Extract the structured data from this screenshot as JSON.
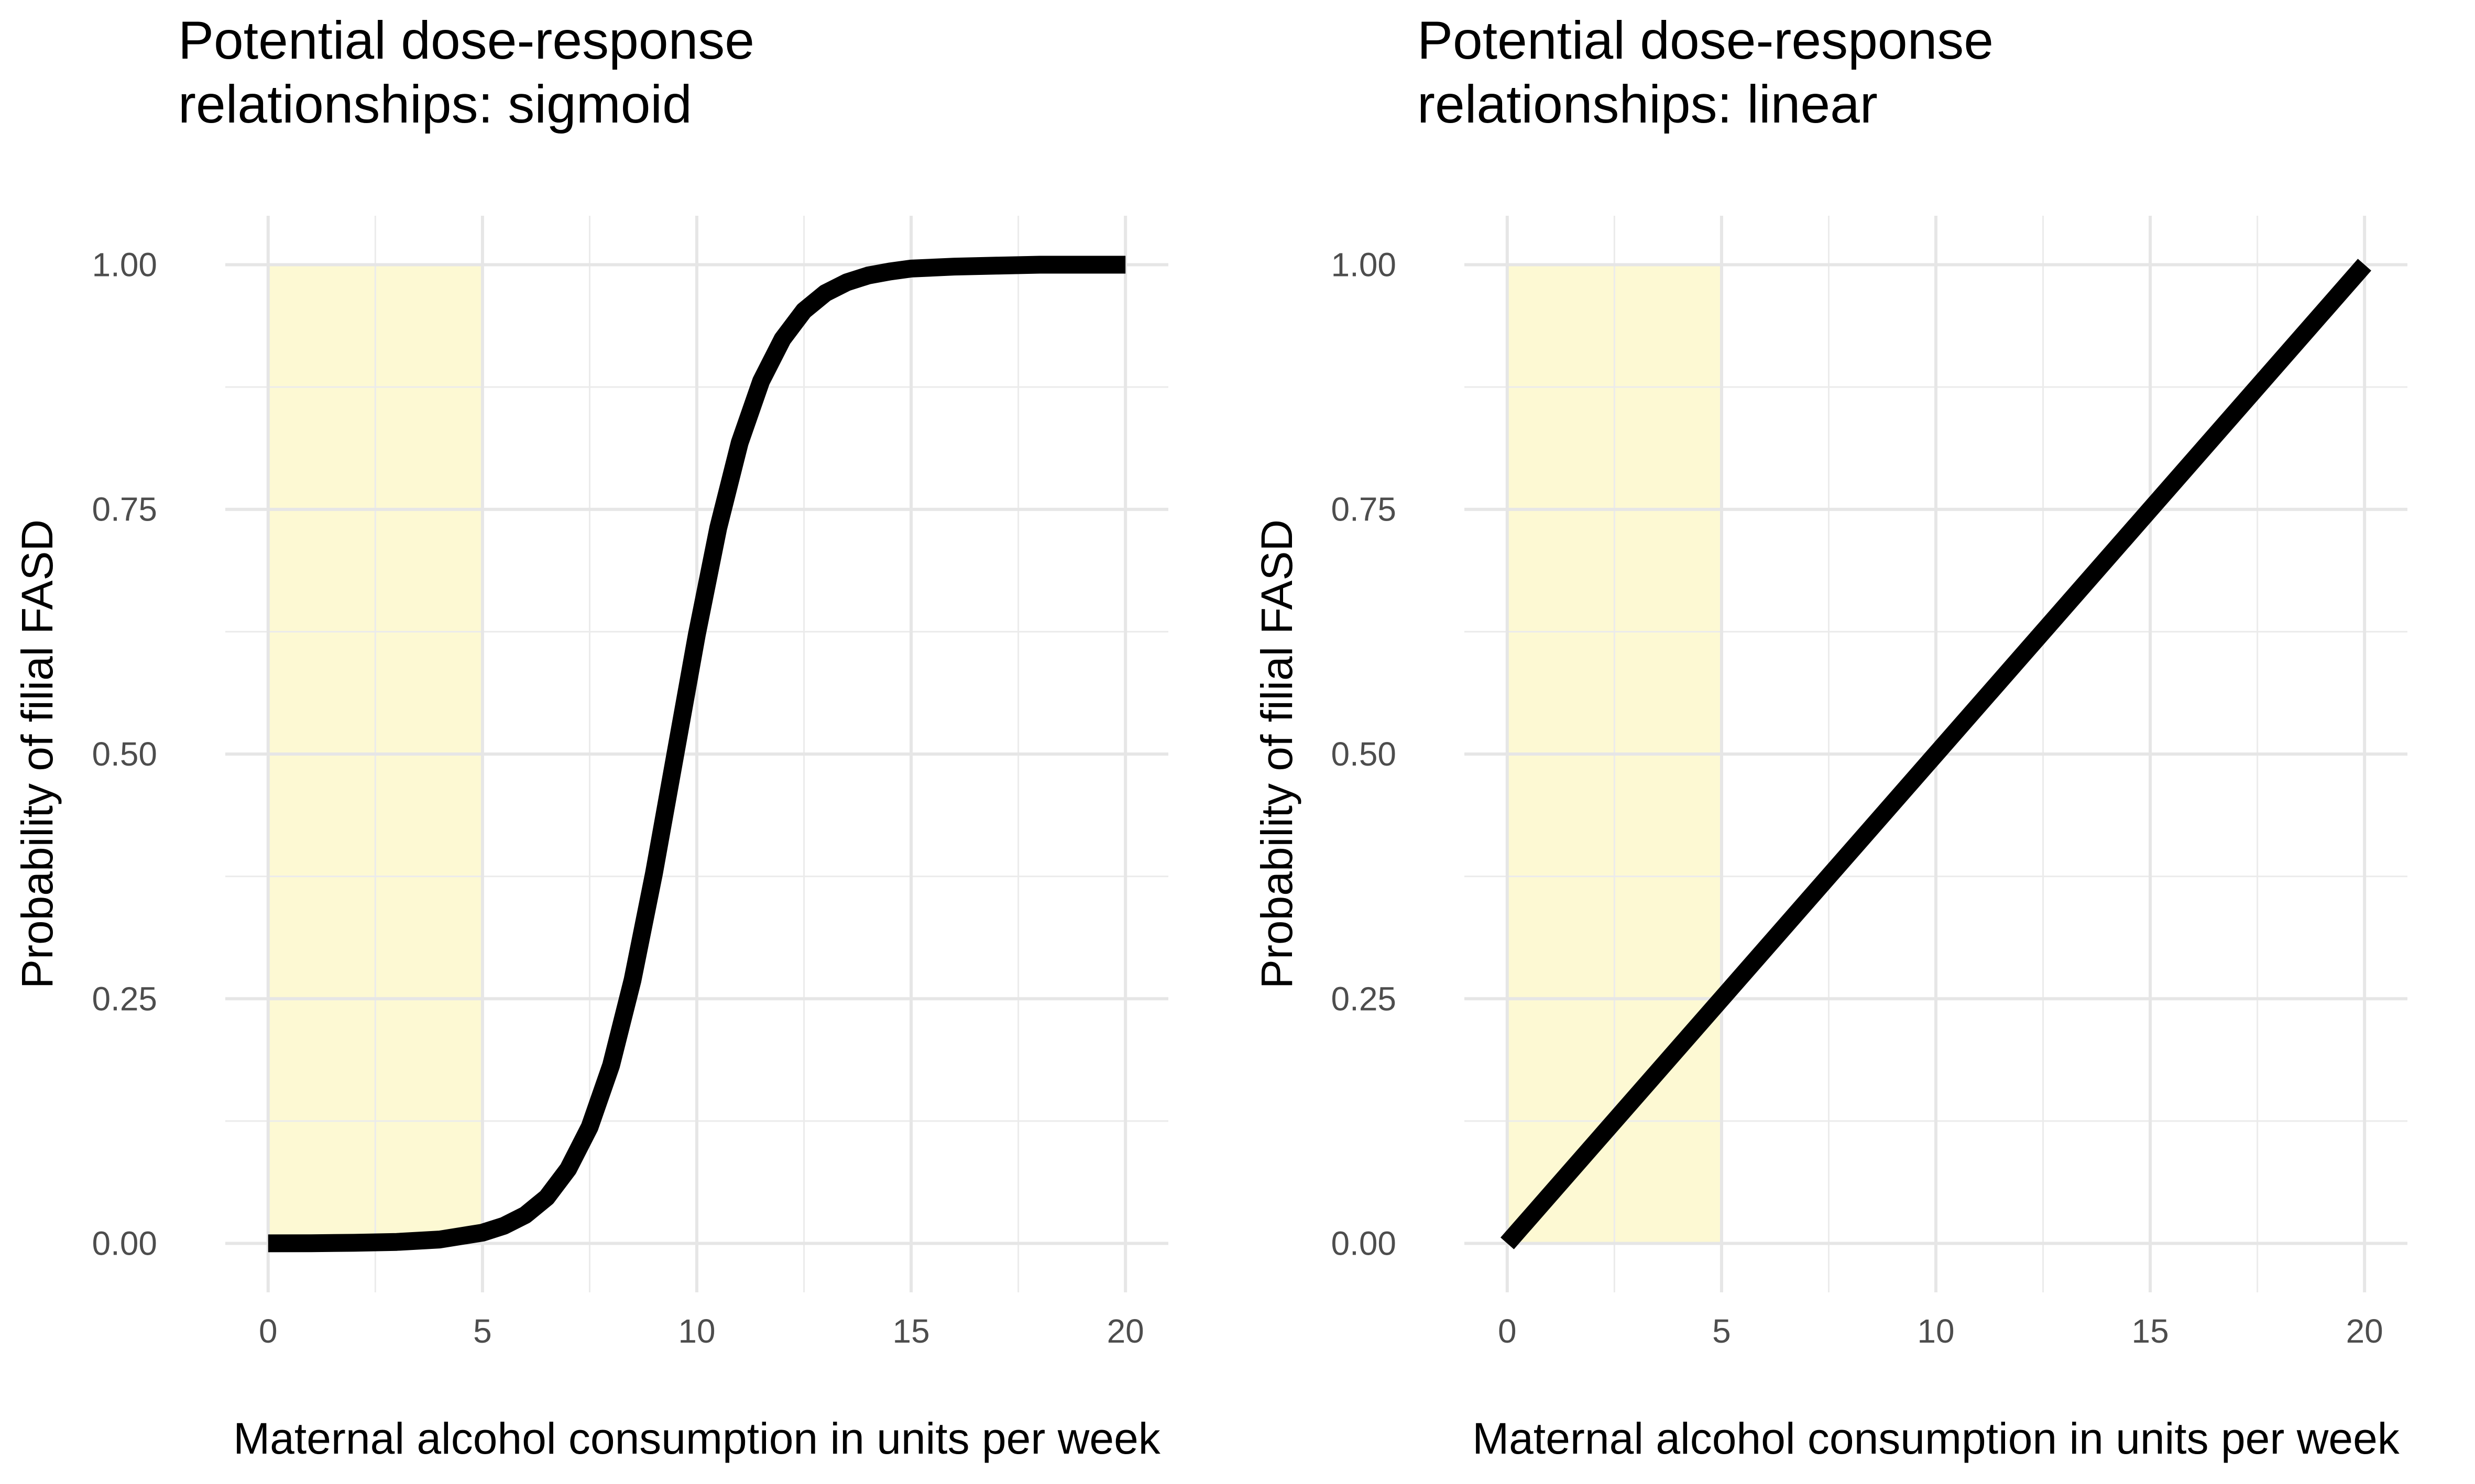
{
  "chart_data": [
    {
      "type": "line",
      "title": "Potential dose-response\nrelationships: sigmoid",
      "xlabel": "Maternal alcohol consumption in units per week",
      "ylabel": "Probability of filial FASD",
      "xlim": [
        0,
        20
      ],
      "ylim": [
        0,
        1
      ],
      "x_ticks": [
        0,
        5,
        10,
        15,
        20
      ],
      "x_tick_labels": [
        "0",
        "5",
        "10",
        "15",
        "20"
      ],
      "y_ticks": [
        0,
        0.25,
        0.5,
        0.75,
        1
      ],
      "y_tick_labels": [
        "0.00",
        "0.25",
        "0.50",
        "0.75",
        "1.00"
      ],
      "grid": true,
      "shaded_region": {
        "x": [
          0,
          5
        ],
        "color": "#FDF9D3"
      },
      "line_color": "#000000",
      "series": [
        {
          "x": [
            0,
            1,
            2,
            3,
            4,
            5,
            5.5,
            6,
            6.5,
            7,
            7.5,
            8,
            8.5,
            9,
            9.5,
            10,
            10.5,
            11,
            11.5,
            12,
            12.5,
            13,
            13.5,
            14,
            14.5,
            15,
            16,
            17,
            18,
            19,
            20
          ],
          "y": [
            0.0001,
            0.0002,
            0.0006,
            0.0015,
            0.004,
            0.011,
            0.018,
            0.029,
            0.047,
            0.076,
            0.119,
            0.182,
            0.269,
            0.378,
            0.5,
            0.622,
            0.731,
            0.818,
            0.881,
            0.924,
            0.953,
            0.971,
            0.982,
            0.989,
            0.993,
            0.996,
            0.998,
            0.999,
            1.0,
            1.0,
            1.0
          ]
        }
      ]
    },
    {
      "type": "line",
      "title": "Potential dose-response\nrelationships: linear",
      "xlabel": "Maternal alcohol consumption in units per week",
      "ylabel": "Probability of filial FASD",
      "xlim": [
        0,
        20
      ],
      "ylim": [
        0,
        1
      ],
      "x_ticks": [
        0,
        5,
        10,
        15,
        20
      ],
      "x_tick_labels": [
        "0",
        "5",
        "10",
        "15",
        "20"
      ],
      "y_ticks": [
        0,
        0.25,
        0.5,
        0.75,
        1
      ],
      "y_tick_labels": [
        "0.00",
        "0.25",
        "0.50",
        "0.75",
        "1.00"
      ],
      "grid": true,
      "shaded_region": {
        "x": [
          0,
          5
        ],
        "color": "#FDF9D3"
      },
      "line_color": "#000000",
      "series": [
        {
          "x": [
            0,
            5,
            10,
            15,
            20
          ],
          "y": [
            0,
            0.25,
            0.5,
            0.75,
            1.0
          ]
        }
      ]
    }
  ]
}
